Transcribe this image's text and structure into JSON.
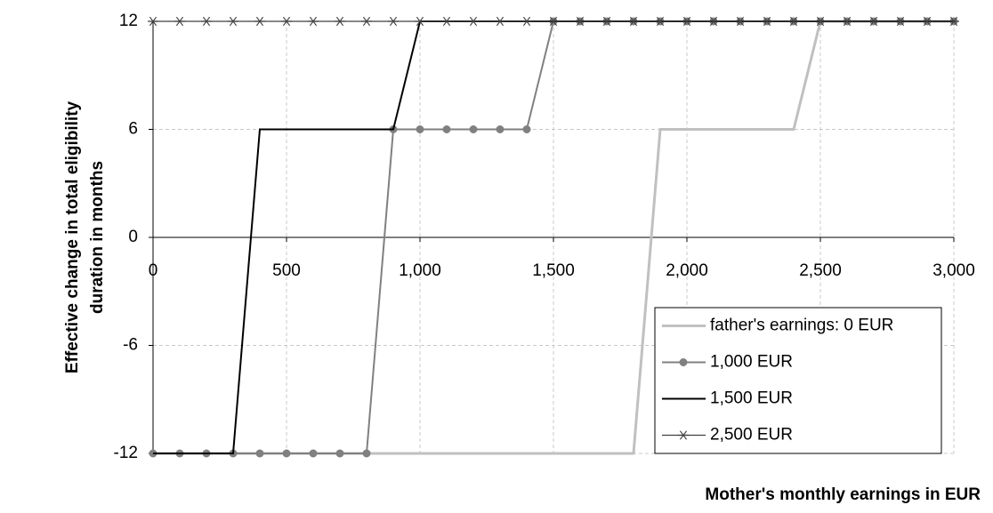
{
  "chart_data": {
    "type": "line",
    "x_label": "Mother's monthly earnings in EUR",
    "y_label": [
      "Effective change in total eligibility",
      "duration in months"
    ],
    "x": [
      0,
      100,
      200,
      300,
      400,
      500,
      600,
      700,
      800,
      900,
      1000,
      1100,
      1200,
      1300,
      1400,
      1500,
      1600,
      1700,
      1800,
      1900,
      2000,
      2100,
      2200,
      2300,
      2400,
      2500,
      2600,
      2700,
      2800,
      2900,
      3000
    ],
    "series": [
      {
        "name": "father's earnings: 0 EUR",
        "color": "#c0c0c0",
        "marker": "none",
        "values": [
          -12,
          -12,
          -12,
          -12,
          -12,
          -12,
          -12,
          -12,
          -12,
          -12,
          -12,
          -12,
          -12,
          -12,
          -12,
          -12,
          -12,
          -12,
          -12,
          6,
          6,
          6,
          6,
          6,
          6,
          12,
          12,
          12,
          12,
          12,
          12
        ]
      },
      {
        "name": "1,000 EUR",
        "color": "#808080",
        "marker": "circle",
        "values": [
          -12,
          -12,
          -12,
          -12,
          -12,
          -12,
          -12,
          -12,
          -12,
          6,
          6,
          6,
          6,
          6,
          6,
          12,
          12,
          12,
          12,
          12,
          12,
          12,
          12,
          12,
          12,
          12,
          12,
          12,
          12,
          12,
          12
        ]
      },
      {
        "name": "1,500 EUR",
        "color": "#000000",
        "marker": "none",
        "values": [
          -12,
          -12,
          -12,
          -12,
          6,
          6,
          6,
          6,
          6,
          6,
          12,
          12,
          12,
          12,
          12,
          12,
          12,
          12,
          12,
          12,
          12,
          12,
          12,
          12,
          12,
          12,
          12,
          12,
          12,
          12,
          12
        ]
      },
      {
        "name": "2,500 EUR",
        "color": "#404040",
        "marker": "asterisk",
        "values": [
          12,
          12,
          12,
          12,
          12,
          12,
          12,
          12,
          12,
          12,
          12,
          12,
          12,
          12,
          12,
          12,
          12,
          12,
          12,
          12,
          12,
          12,
          12,
          12,
          12,
          12,
          12,
          12,
          12,
          12,
          12
        ]
      }
    ],
    "xlim": [
      0,
      3000
    ],
    "xticks": [
      0,
      500,
      {
        "value": 1000,
        "label": "1,000"
      },
      {
        "value": 1500,
        "label": "1,500"
      },
      {
        "value": 2000,
        "label": "2,000"
      },
      {
        "value": 2500,
        "label": "2,500"
      },
      {
        "value": 3000,
        "label": "3,000"
      }
    ],
    "ylim": [
      -12,
      12
    ],
    "yticks": [
      -12,
      -6,
      0,
      6,
      12
    ],
    "grid": true,
    "legend": "lower right"
  }
}
